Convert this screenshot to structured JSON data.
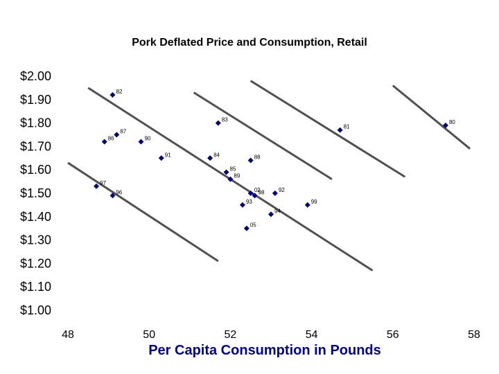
{
  "chart_data": {
    "type": "scatter",
    "title": "Pork Deflated Price and Consumption, Retail",
    "xlabel": "Per Capita Consumption in Pounds",
    "ylabel": "",
    "xlim": [
      48,
      58
    ],
    "ylim": [
      1.0,
      2.0
    ],
    "x_ticks": [
      "48",
      "50",
      "52",
      "54",
      "56",
      "58"
    ],
    "y_ticks": [
      "$1.00",
      "$1.10",
      "$1.20",
      "$1.30",
      "$1.40",
      "$1.50",
      "$1.60",
      "$1.70",
      "$1.80",
      "$1.90",
      "$2.00"
    ],
    "grid": false,
    "points": [
      {
        "label": "82",
        "x": 49.1,
        "y": 1.92
      },
      {
        "label": "83",
        "x": 51.7,
        "y": 1.8
      },
      {
        "label": "81",
        "x": 54.7,
        "y": 1.77
      },
      {
        "label": "80",
        "x": 57.3,
        "y": 1.79
      },
      {
        "label": "87",
        "x": 49.2,
        "y": 1.75
      },
      {
        "label": "86",
        "x": 48.9,
        "y": 1.72
      },
      {
        "label": "90",
        "x": 49.8,
        "y": 1.72
      },
      {
        "label": "91",
        "x": 50.3,
        "y": 1.65
      },
      {
        "label": "84",
        "x": 51.5,
        "y": 1.65
      },
      {
        "label": "88",
        "x": 52.5,
        "y": 1.64
      },
      {
        "label": "85",
        "x": 51.9,
        "y": 1.59
      },
      {
        "label": "89",
        "x": 52.0,
        "y": 1.56
      },
      {
        "label": "97",
        "x": 48.7,
        "y": 1.53
      },
      {
        "label": "02",
        "x": 52.5,
        "y": 1.5
      },
      {
        "label": "98",
        "x": 52.6,
        "y": 1.49
      },
      {
        "label": "92",
        "x": 53.1,
        "y": 1.5
      },
      {
        "label": "96",
        "x": 49.1,
        "y": 1.49
      },
      {
        "label": "99",
        "x": 53.9,
        "y": 1.45
      },
      {
        "label": "93",
        "x": 52.3,
        "y": 1.45
      },
      {
        "label": "94",
        "x": 53.0,
        "y": 1.41
      },
      {
        "label": "05",
        "x": 52.4,
        "y": 1.35
      }
    ],
    "lines": [
      {
        "x1": 48.0,
        "y1": 1.63,
        "x2": 51.7,
        "y2": 1.21
      },
      {
        "x1": 48.5,
        "y1": 1.95,
        "x2": 55.5,
        "y2": 1.17
      },
      {
        "x1": 51.1,
        "y1": 1.93,
        "x2": 54.5,
        "y2": 1.56
      },
      {
        "x1": 52.5,
        "y1": 1.98,
        "x2": 56.3,
        "y2": 1.57
      },
      {
        "x1": 56.0,
        "y1": 1.96,
        "x2": 57.9,
        "y2": 1.69
      }
    ],
    "colors": {
      "marker": "#000080",
      "line": "#505050",
      "xlabel": "#000099"
    }
  }
}
